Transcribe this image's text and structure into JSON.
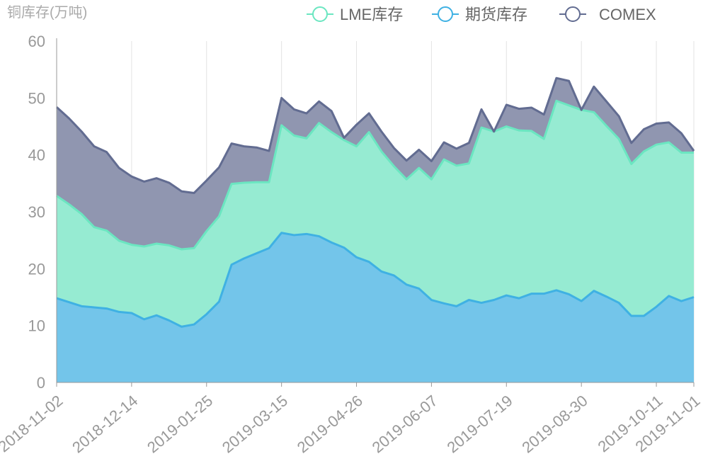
{
  "chart_data": {
    "type": "area",
    "stacked": true,
    "y_unit_label": "铜库存(万吨)",
    "ylim": [
      0,
      60
    ],
    "y_ticks": [
      0,
      10,
      20,
      30,
      40,
      50,
      60
    ],
    "x_tick_labels": [
      "2018-11-02",
      "2018-12-14",
      "2019-01-25",
      "2019-03-15",
      "2019-04-26",
      "2019-06-07",
      "2019-07-19",
      "2019-08-30",
      "2019-10-11",
      "2019-11-01"
    ],
    "x_tick_index": [
      0,
      6,
      12,
      18,
      24,
      30,
      36,
      42,
      48,
      51
    ],
    "grid": "vertical",
    "legend_position": "top-right",
    "n_points": 52,
    "series": [
      {
        "name": "期货库存",
        "color": "#3fb1e3",
        "fill": "#73c5ea",
        "values": [
          14.8,
          14.1,
          13.4,
          13.2,
          13.0,
          12.4,
          12.2,
          11.1,
          11.8,
          10.9,
          9.8,
          10.2,
          12.0,
          14.2,
          20.7,
          21.8,
          22.7,
          23.6,
          26.3,
          25.9,
          26.1,
          25.7,
          24.6,
          23.7,
          22.0,
          21.2,
          19.5,
          18.8,
          17.2,
          16.5,
          14.5,
          13.9,
          13.4,
          14.5,
          14.0,
          14.5,
          15.3,
          14.8,
          15.6,
          15.6,
          16.2,
          15.5,
          14.3,
          16.1,
          15.1,
          14.0,
          11.7,
          11.7,
          13.3,
          15.2,
          14.3,
          15.0
        ]
      },
      {
        "name": "LME库存",
        "color": "#6be6c1",
        "fill": "#96ebd2",
        "values": [
          18.0,
          17.2,
          16.2,
          14.1,
          13.7,
          12.5,
          12.0,
          12.8,
          12.6,
          13.2,
          13.6,
          13.4,
          14.6,
          15.0,
          14.2,
          13.3,
          12.5,
          11.6,
          18.9,
          17.5,
          16.8,
          19.9,
          19.4,
          18.9,
          19.5,
          22.8,
          21.1,
          19.2,
          18.5,
          21.2,
          21.2,
          25.3,
          24.7,
          24.0,
          30.8,
          29.6,
          29.7,
          29.5,
          28.6,
          27.2,
          33.3,
          33.2,
          33.6,
          31.4,
          30.0,
          28.8,
          26.7,
          28.9,
          28.5,
          27.0,
          26.1,
          25.4
        ]
      },
      {
        "name": "COMEX",
        "color": "#626c91",
        "fill": "#9096b0",
        "values": [
          15.6,
          15.1,
          14.5,
          14.2,
          13.8,
          12.8,
          12.0,
          11.4,
          11.5,
          11.0,
          10.2,
          9.7,
          8.9,
          8.6,
          7.1,
          6.4,
          6.1,
          5.5,
          4.8,
          4.6,
          4.4,
          3.8,
          3.7,
          0.4,
          3.8,
          3.3,
          3.5,
          3.2,
          3.3,
          3.2,
          3.2,
          3.0,
          3.0,
          3.6,
          3.2,
          0,
          3.8,
          3.8,
          4.1,
          4.3,
          4.0,
          4.3,
          0,
          4.5,
          4.3,
          4.0,
          3.7,
          3.9,
          3.7,
          3.5,
          3.4,
          0.3
        ]
      }
    ]
  },
  "legend": {
    "items": [
      {
        "label": "LME库存",
        "color": "#6be6c1"
      },
      {
        "label": "期货库存",
        "color": "#3fb1e3"
      },
      {
        "label": "COMEX",
        "color": "#626c91"
      }
    ]
  }
}
